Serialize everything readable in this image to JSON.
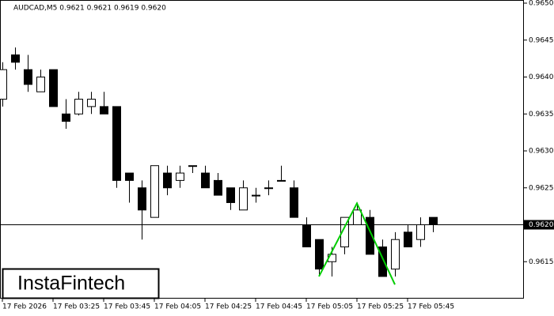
{
  "chart_data": {
    "type": "candlestick",
    "title": "AUDCAD,M5  0.9621 0.9621 0.9619 0.9620",
    "logo": "InstaFintech",
    "categories": [
      "17 Feb 2026",
      null,
      null,
      null,
      "17 Feb 03:25",
      null,
      null,
      null,
      "17 Feb 03:45",
      null,
      null,
      null,
      "17 Feb 04:05",
      null,
      null,
      null,
      "17 Feb 04:25",
      null,
      null,
      null,
      "17 Feb 04:45",
      null,
      null,
      null,
      "17 Feb 05:05",
      null,
      null,
      null,
      "17 Feb 05:25",
      null,
      null,
      null,
      "17 Feb 05:45",
      null,
      null
    ],
    "open": [
      0.9637,
      0.9643,
      0.9641,
      0.9638,
      0.9641,
      0.9635,
      0.9635,
      0.9636,
      0.9636,
      0.9636,
      0.9627,
      0.9625,
      0.9621,
      0.9627,
      0.9626,
      0.9628,
      0.9627,
      0.9626,
      0.9625,
      0.9622,
      0.9624,
      0.9625,
      0.9626,
      0.9625,
      0.962,
      0.9618,
      0.9615,
      0.9617,
      0.962,
      0.9621,
      0.9617,
      0.9614,
      0.9619,
      0.9618,
      0.9621
    ],
    "high": [
      0.9642,
      0.9644,
      0.9643,
      0.9641,
      0.9641,
      0.9637,
      0.9638,
      0.9638,
      0.9638,
      0.9636,
      0.9627,
      0.9626,
      0.9628,
      0.9628,
      0.9628,
      0.9628,
      0.9628,
      0.9627,
      0.9625,
      0.9626,
      0.9625,
      0.9626,
      0.9628,
      0.9626,
      0.9621,
      0.9618,
      0.9617,
      0.9621,
      0.9623,
      0.9622,
      0.9618,
      0.9619,
      0.962,
      0.9621,
      0.9621
    ],
    "low": [
      0.9636,
      0.9641,
      0.9638,
      0.9638,
      0.9636,
      0.9633,
      0.96348,
      0.9635,
      0.9635,
      0.9625,
      0.9623,
      0.9618,
      0.9621,
      0.9624,
      0.9625,
      0.9627,
      0.9625,
      0.9624,
      0.9622,
      0.9622,
      0.9623,
      0.9624,
      0.9626,
      0.9621,
      0.9617,
      0.9613,
      0.9613,
      0.9616,
      0.962,
      0.9616,
      0.9613,
      0.9613,
      0.9617,
      0.9617,
      0.9619
    ],
    "close": [
      0.9641,
      0.9642,
      0.9639,
      0.964,
      0.9636,
      0.9634,
      0.9637,
      0.9637,
      0.9635,
      0.9626,
      0.9626,
      0.9622,
      0.9628,
      0.9625,
      0.9627,
      0.9628,
      0.9625,
      0.9624,
      0.9623,
      0.9625,
      0.9624,
      0.9625,
      0.9626,
      0.9621,
      0.9617,
      0.9614,
      0.9616,
      0.9621,
      0.9622,
      0.9616,
      0.9613,
      0.9618,
      0.9617,
      0.962,
      0.962
    ],
    "ylim": [
      0.961,
      0.965
    ],
    "yticks": [
      0.9615,
      {
        "value": 0.962,
        "label": "0.9620"
      },
      0.9625,
      {
        "value": 0.963,
        "label": "0.9630"
      },
      0.9635,
      {
        "value": 0.964,
        "label": "0.9640"
      },
      0.9645,
      {
        "value": 0.965,
        "label": "0.9650"
      }
    ],
    "current_price": {
      "value": 0.962,
      "label": "0.9620"
    },
    "pattern": {
      "color": "#00cc00",
      "candles": [
        25,
        28,
        31
      ],
      "values": [
        0.9613,
        0.96229,
        0.96119
      ]
    },
    "bull_color": "#ffffff",
    "bear_color": "#000000"
  }
}
